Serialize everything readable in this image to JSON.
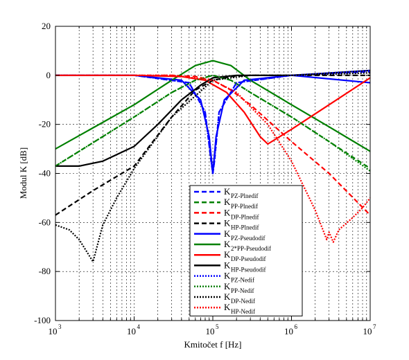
{
  "chart_data": {
    "type": "line",
    "xlabel": "Kmitočet f [Hz]",
    "ylabel": "Modul K [dB]",
    "xscale": "log",
    "xlim": [
      1000,
      10000000
    ],
    "ylim": [
      -100,
      20
    ],
    "grid": true,
    "legend_position": "bottom-center",
    "x_ticks": [
      {
        "base": "10",
        "exp": "3",
        "value": 1000
      },
      {
        "base": "10",
        "exp": "4",
        "value": 10000
      },
      {
        "base": "10",
        "exp": "5",
        "value": 100000
      },
      {
        "base": "10",
        "exp": "6",
        "value": 1000000
      },
      {
        "base": "10",
        "exp": "7",
        "value": 10000000
      }
    ],
    "y_ticks": [
      "20",
      "0",
      "-20",
      "-40",
      "-60",
      "-80",
      "-100"
    ],
    "series": [
      {
        "name_main": "K",
        "name_sub": "PZ-Plnedif",
        "color": "#0000ff",
        "style": "dashed",
        "x": [
          1000,
          10000,
          50000,
          80000,
          95000,
          100000,
          105000,
          120000,
          200000,
          1000000,
          10000000
        ],
        "y": [
          0,
          0,
          -3,
          -15,
          -35,
          -40,
          -35,
          -15,
          -3,
          0,
          1.5
        ]
      },
      {
        "name_main": "K",
        "name_sub": "PP-Plnedif",
        "color": "#008000",
        "style": "dashed",
        "x": [
          1000,
          10000,
          30000,
          60000,
          100000,
          170000,
          300000,
          1000000,
          3000000,
          10000000
        ],
        "y": [
          -37,
          -17,
          -7,
          -2,
          0,
          -2,
          -7,
          -17,
          -27,
          -38
        ]
      },
      {
        "name_main": "K",
        "name_sub": "DP-Plnedif",
        "color": "#ff0000",
        "style": "dashed",
        "x": [
          1000,
          10000,
          30000,
          60000,
          100000,
          170000,
          300000,
          1000000,
          3000000,
          10000000
        ],
        "y": [
          0,
          0,
          0,
          -0.5,
          -2,
          -6,
          -12,
          -27,
          -40,
          -57
        ]
      },
      {
        "name_main": "K",
        "name_sub": "HP-Plnedif",
        "color": "#000000",
        "style": "dashed",
        "x": [
          1000,
          3000,
          10000,
          30000,
          60000,
          100000,
          170000,
          300000,
          1000000,
          10000000
        ],
        "y": [
          -57,
          -47,
          -37,
          -17,
          -6,
          -2,
          -0.5,
          0,
          0,
          0
        ]
      },
      {
        "name_main": "K",
        "name_sub": "PZ-Pseudodif",
        "color": "#0000ff",
        "style": "solid",
        "x": [
          1000,
          10000,
          40000,
          70000,
          90000,
          100000,
          110000,
          140000,
          250000,
          1000000,
          10000000
        ],
        "y": [
          0,
          0,
          -2,
          -10,
          -25,
          -40,
          -25,
          -10,
          -2,
          0,
          -3
        ]
      },
      {
        "name_main": "K",
        "name_sub": "2*PP-Pseudodif",
        "color": "#008000",
        "style": "solid",
        "x": [
          1000,
          10000,
          30000,
          60000,
          100000,
          170000,
          300000,
          1000000,
          3000000,
          10000000
        ],
        "y": [
          -30,
          -12,
          -2,
          4,
          6,
          4,
          -2,
          -12,
          -21,
          -31
        ]
      },
      {
        "name_main": "K",
        "name_sub": "DP-Pseudodif",
        "color": "#ff0000",
        "style": "solid",
        "x": [
          1000,
          10000,
          40000,
          80000,
          150000,
          250000,
          400000,
          500000,
          1000000,
          3000000,
          10000000
        ],
        "y": [
          0,
          0,
          -0.5,
          -2,
          -7,
          -15,
          -25,
          -28,
          -22,
          -12,
          -1
        ]
      },
      {
        "name_main": "K",
        "name_sub": "HP-Pseudodif",
        "color": "#000000",
        "style": "solid",
        "x": [
          1000,
          2000,
          4000,
          10000,
          20000,
          40000,
          70000,
          100000,
          200000,
          1000000,
          10000000
        ],
        "y": [
          -37,
          -37,
          -35,
          -29,
          -20,
          -10,
          -4,
          -1,
          0,
          0,
          2
        ]
      },
      {
        "name_main": "K",
        "name_sub": "PZ-Nedif",
        "color": "#0000ff",
        "style": "dotted",
        "x": [
          1000,
          10000,
          50000,
          80000,
          95000,
          100000,
          105000,
          120000,
          200000,
          1000000,
          10000000
        ],
        "y": [
          0,
          0,
          -3,
          -15,
          -35,
          -40,
          -35,
          -15,
          -3,
          0,
          2
        ]
      },
      {
        "name_main": "K",
        "name_sub": "PP-Nedif",
        "color": "#008000",
        "style": "dotted",
        "x": [
          1000,
          10000,
          30000,
          60000,
          100000,
          170000,
          300000,
          1000000,
          3000000,
          10000000
        ],
        "y": [
          -37,
          -17,
          -7,
          -2,
          0,
          -2,
          -7,
          -17,
          -27,
          -39
        ]
      },
      {
        "name_main": "K",
        "name_sub": "DP-Nedif",
        "color": "#000000",
        "style": "dotted",
        "x": [
          1000,
          1500,
          2000,
          3000,
          4000,
          6000,
          10000,
          30000,
          100000,
          300000,
          1000000,
          10000000
        ],
        "y": [
          -61,
          -63,
          -67,
          -76,
          -61,
          -50,
          -38,
          -17,
          -2,
          0,
          0,
          1
        ]
      },
      {
        "name_main": "K",
        "name_sub": "HP-Nedif",
        "color": "#ff0000",
        "style": "dotted",
        "x": [
          1000,
          10000,
          30000,
          100000,
          200000,
          500000,
          1000000,
          2000000,
          2800000,
          3000000,
          3400000,
          4000000,
          6000000,
          8000000,
          10000000
        ],
        "y": [
          0,
          0,
          0,
          -2,
          -7,
          -20,
          -35,
          -55,
          -67,
          -64,
          -68,
          -63,
          -58,
          -54,
          -50
        ]
      }
    ]
  }
}
